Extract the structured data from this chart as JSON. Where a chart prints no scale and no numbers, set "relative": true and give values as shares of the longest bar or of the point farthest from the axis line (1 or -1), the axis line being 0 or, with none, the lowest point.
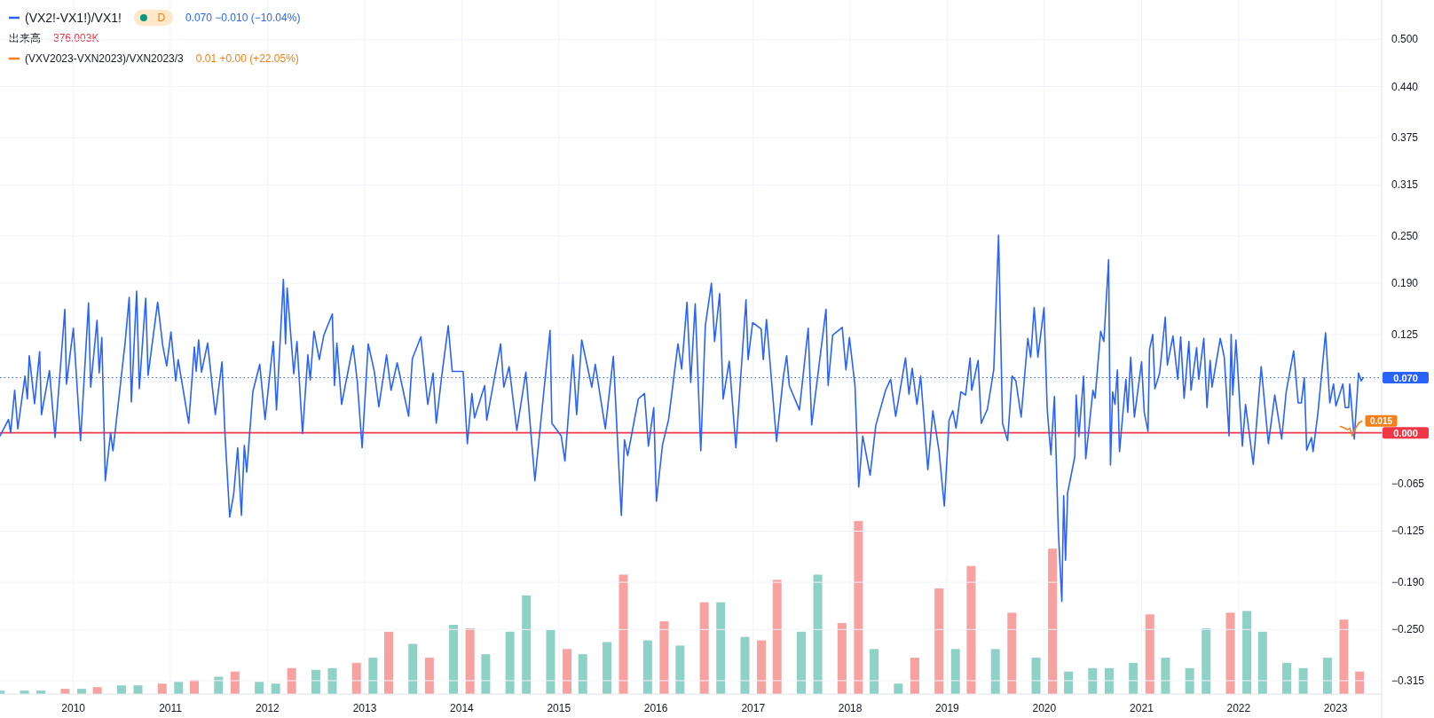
{
  "chart_data": [
    {
      "type": "line",
      "legend": "top left",
      "grid": true,
      "xlim": [
        "2009-03-31",
        "2023-06-23"
      ],
      "ylim": [
        -0.332,
        0.55
      ],
      "xticks": [
        "2010",
        "2011",
        "2012",
        "2013",
        "2014",
        "2015",
        "2016",
        "2017",
        "2018",
        "2019",
        "2020",
        "2021",
        "2022",
        "2023"
      ],
      "yticks": [
        {
          "value": 0.5,
          "label": "0.500"
        },
        {
          "value": 0.44,
          "label": "0.440"
        },
        {
          "value": 0.375,
          "label": "0.375"
        },
        {
          "value": 0.315,
          "label": "0.315"
        },
        {
          "value": 0.25,
          "label": "0.250"
        },
        {
          "value": 0.19,
          "label": "0.190"
        },
        {
          "value": 0.125,
          "label": "0.125"
        },
        {
          "value": 0.065,
          "label": null
        },
        {
          "value": 0,
          "label": null
        },
        {
          "value": -0.065,
          "label": "−0.065"
        },
        {
          "value": -0.125,
          "label": "−0.125"
        },
        {
          "value": -0.19,
          "label": "−0.190"
        },
        {
          "value": -0.25,
          "label": "−0.250"
        },
        {
          "value": -0.315,
          "label": "−0.315"
        }
      ],
      "annotations": [
        "D",
        "0.070 −0.010 (−10.04%)",
        "0.01 +0.00 (+22.05%)"
      ],
      "ref_lines": [
        {
          "axis": "y",
          "value": 0.07,
          "label": "0.070",
          "color": "#2962ff",
          "line_style": "dotted"
        },
        {
          "axis": "y",
          "value": 0,
          "label": "0.000",
          "color": "#f23645",
          "line_style": "solid"
        }
      ],
      "series": [
        {
          "name": "(VX2!-VX1!)/VX1!",
          "color": "#2962ff",
          "line_style": "solid",
          "x": [
            "2009-03-31",
            "2009-05-02",
            "2009-05-10",
            "2009-05-25",
            "2009-06-06",
            "2009-07-03",
            "2009-07-12",
            "2009-07-19",
            "2009-08-08",
            "2009-08-27",
            "2009-09-03",
            "2009-10-03",
            "2009-10-24",
            "2009-11-30",
            "2009-12-06",
            "2010-01-01",
            "2010-01-28",
            "2010-02-27",
            "2010-03-07",
            "2010-03-31",
            "2010-04-08",
            "2010-04-18",
            "2010-05-01",
            "2010-05-21",
            "2010-05-30",
            "2010-07-15",
            "2010-07-30",
            "2010-08-07",
            "2010-08-27",
            "2010-09-06",
            "2010-09-30",
            "2010-10-09",
            "2010-11-14",
            "2010-12-03",
            "2010-12-18",
            "2011-01-03",
            "2011-01-21",
            "2011-01-30",
            "2011-03-11",
            "2011-04-01",
            "2011-04-08",
            "2011-04-17",
            "2011-04-28",
            "2011-05-21",
            "2011-06-19",
            "2011-07-14",
            "2011-07-25",
            "2011-08-12",
            "2011-08-27",
            "2011-09-11",
            "2011-09-25",
            "2011-10-06",
            "2011-10-15",
            "2011-11-07",
            "2011-12-03",
            "2011-12-23",
            "2012-01-23",
            "2012-02-04",
            "2012-03-01",
            "2012-03-09",
            "2012-03-15",
            "2012-04-09",
            "2012-04-21",
            "2012-05-12",
            "2012-06-01",
            "2012-06-10",
            "2012-06-24",
            "2012-07-14",
            "2012-07-31",
            "2012-09-01",
            "2012-09-09",
            "2012-09-18",
            "2012-10-06",
            "2012-11-18",
            "2012-12-04",
            "2012-12-22",
            "2013-01-14",
            "2013-02-06",
            "2013-02-23",
            "2013-03-24",
            "2013-04-10",
            "2013-05-03",
            "2013-06-15",
            "2013-06-29",
            "2013-07-31",
            "2013-08-26",
            "2013-09-15",
            "2013-09-27",
            "2013-10-16",
            "2013-11-11",
            "2013-11-26",
            "2014-01-06",
            "2014-01-22",
            "2014-02-08",
            "2014-02-18",
            "2014-03-28",
            "2014-04-05",
            "2014-05-27",
            "2014-06-08",
            "2014-06-28",
            "2014-07-27",
            "2014-08-30",
            "2014-10-03",
            "2014-11-04",
            "2014-11-29",
            "2014-12-06",
            "2015-01-10",
            "2015-01-24",
            "2015-02-23",
            "2015-03-09",
            "2015-03-28",
            "2015-05-05",
            "2015-05-18",
            "2015-06-25",
            "2015-07-25",
            "2015-08-24",
            "2015-09-05",
            "2015-09-17",
            "2015-10-27",
            "2015-11-19",
            "2015-12-04",
            "2015-12-24",
            "2016-01-03",
            "2016-01-26",
            "2016-02-18",
            "2016-03-24",
            "2016-04-07",
            "2016-04-27",
            "2016-05-11",
            "2016-05-28",
            "2016-06-18",
            "2016-07-05",
            "2016-07-28",
            "2016-08-09",
            "2016-08-28",
            "2016-09-10",
            "2016-10-03",
            "2016-10-28",
            "2016-12-05",
            "2016-12-13",
            "2016-12-30",
            "2017-01-31",
            "2017-02-08",
            "2017-02-20",
            "2017-03-30",
            "2017-04-24",
            "2017-05-07",
            "2017-05-17",
            "2017-06-24",
            "2017-07-27",
            "2017-08-09",
            "2017-10-02",
            "2017-10-10",
            "2017-10-27",
            "2017-12-02",
            "2017-12-16",
            "2017-12-29",
            "2018-01-19",
            "2018-02-02",
            "2018-02-17",
            "2018-03-17",
            "2018-04-07",
            "2018-05-14",
            "2018-06-02",
            "2018-06-21",
            "2018-07-28",
            "2018-08-10",
            "2018-08-22",
            "2018-09-09",
            "2018-09-23",
            "2018-10-20",
            "2018-11-08",
            "2018-12-01",
            "2018-12-21",
            "2019-01-08",
            "2019-01-22",
            "2019-02-03",
            "2019-02-21",
            "2019-03-11",
            "2019-03-28",
            "2019-04-03",
            "2019-04-27",
            "2019-05-09",
            "2019-06-01",
            "2019-06-25",
            "2019-07-13",
            "2019-07-28",
            "2019-08-16",
            "2019-09-02",
            "2019-09-16",
            "2019-10-06",
            "2019-10-31",
            "2019-11-11",
            "2019-11-24",
            "2019-12-08",
            "2019-12-31",
            "2020-01-12",
            "2020-01-26",
            "2020-02-08",
            "2020-02-23",
            "2020-03-07",
            "2020-03-14",
            "2020-03-21",
            "2020-03-29",
            "2020-04-25",
            "2020-04-30",
            "2020-05-10",
            "2020-05-28",
            "2020-06-05",
            "2020-07-02",
            "2020-07-10",
            "2020-07-31",
            "2020-08-12",
            "2020-08-30",
            "2020-09-06",
            "2020-09-14",
            "2020-09-23",
            "2020-10-02",
            "2020-10-10",
            "2020-11-03",
            "2020-11-10",
            "2020-11-21",
            "2020-12-05",
            "2021-01-01",
            "2021-01-11",
            "2021-01-25",
            "2021-01-31",
            "2021-02-12",
            "2021-02-20",
            "2021-03-10",
            "2021-03-31",
            "2021-04-08",
            "2021-04-29",
            "2021-05-17",
            "2021-05-28",
            "2021-06-10",
            "2021-06-28",
            "2021-07-06",
            "2021-07-27",
            "2021-08-04",
            "2021-08-23",
            "2021-09-04",
            "2021-09-16",
            "2021-09-23",
            "2021-10-24",
            "2021-11-08",
            "2021-11-26",
            "2021-12-04",
            "2021-12-10",
            "2021-12-22",
            "2022-01-15",
            "2022-01-27",
            "2022-02-25",
            "2022-03-27",
            "2022-04-23",
            "2022-05-17",
            "2022-06-12",
            "2022-06-29",
            "2022-07-27",
            "2022-08-13",
            "2022-08-25",
            "2022-09-05",
            "2022-09-14",
            "2022-10-02",
            "2022-10-08",
            "2022-10-26",
            "2022-11-24",
            "2022-12-10",
            "2022-12-24",
            "2023-01-02",
            "2023-01-28",
            "2023-02-06",
            "2023-02-19",
            "2023-02-23",
            "2023-03-12",
            "2023-03-28",
            "2023-04-07",
            "2023-04-15"
          ],
          "values": [
            -0.004,
            0.017,
            0,
            0.054,
            0.005,
            0.072,
            0.043,
            0.098,
            0.037,
            0.103,
            0.023,
            0.079,
            -0.006,
            0.157,
            0.062,
            0.133,
            -0.01,
            0.165,
            0.058,
            0.143,
            0.076,
            0.121,
            -0.061,
            0,
            -0.023,
            0.116,
            0.172,
            0.039,
            0.18,
            0.056,
            0.171,
            0.073,
            0.166,
            0.111,
            0.085,
            0.128,
            0.066,
            0.093,
            0.012,
            0.109,
            0.078,
            0.118,
            0.077,
            0.114,
            0.023,
            0.09,
            0,
            -0.107,
            -0.078,
            -0.019,
            -0.105,
            -0.016,
            -0.05,
            0.052,
            0.087,
            0.017,
            0.116,
            0.029,
            0.195,
            0.113,
            0.184,
            0.075,
            0.116,
            -0.001,
            0.099,
            0.067,
            0.129,
            0.093,
            0.124,
            0.151,
            0.06,
            0.114,
            0.036,
            0.111,
            0.065,
            -0.019,
            0.113,
            0.078,
            0.033,
            0.099,
            0.054,
            0.089,
            0.021,
            0.094,
            0.122,
            0.036,
            0.076,
            0.012,
            0.068,
            0.136,
            0.078,
            0.078,
            -0.014,
            0.05,
            0.019,
            0.06,
            0.016,
            0.113,
            0.058,
            0.084,
            0.003,
            0.077,
            -0.061,
            0.047,
            0.13,
            0.012,
            -0.004,
            -0.036,
            0.099,
            0.023,
            0.118,
            0.058,
            0.087,
            0.005,
            0.097,
            -0.105,
            -0.009,
            -0.029,
            0.043,
            0.05,
            -0.017,
            0.032,
            -0.087,
            -0.015,
            0.017,
            0.113,
            0.081,
            0.166,
            0.064,
            0.164,
            -0.023,
            0.136,
            0.19,
            0.116,
            0.177,
            0.043,
            0.091,
            -0.019,
            0.169,
            0.093,
            0.14,
            0.132,
            0.093,
            0.144,
            -0.011,
            0.07,
            0.098,
            0.06,
            0.029,
            0.133,
            0.01,
            0.157,
            0.06,
            0.124,
            0.134,
            0.08,
            0.121,
            0.06,
            -0.069,
            -0.004,
            -0.054,
            0.009,
            0.054,
            0.068,
            0.021,
            0.095,
            0.049,
            0.082,
            0.036,
            0.072,
            -0.047,
            0.028,
            -0.023,
            -0.093,
            0.016,
            0.028,
            0.006,
            0.052,
            0.048,
            0.095,
            0.054,
            0.092,
            0.012,
            0.03,
            0.08,
            0.251,
            0.012,
            -0.01,
            0.072,
            0.066,
            0.02,
            0.12,
            0.096,
            0.159,
            0.096,
            0.159,
            0.03,
            -0.028,
            0.046,
            -0.126,
            -0.214,
            -0.08,
            -0.162,
            -0.076,
            -0.03,
            0.048,
            -0.005,
            0.072,
            -0.033,
            0.054,
            0.044,
            0.129,
            0.116,
            0.22,
            -0.041,
            0.052,
            0.036,
            0.08,
            -0.024,
            0.068,
            0.026,
            0.096,
            0.02,
            0.09,
            0.026,
            0.002,
            0.106,
            0.125,
            0.056,
            0.076,
            0.147,
            0.086,
            0.123,
            0.068,
            0.122,
            0.044,
            0.116,
            0.054,
            0.108,
            0.068,
            0.12,
            0.032,
            0.092,
            0.058,
            0.12,
            0.096,
            -0.004,
            0.125,
            0.048,
            0.118,
            -0.017,
            0.036,
            -0.04,
            0.084,
            -0.014,
            0.048,
            -0.008,
            0.052,
            0.104,
            0.038,
            0.038,
            0.07,
            -0.022,
            -0.006,
            -0.024,
            0.024,
            0.127,
            0.038,
            0.062,
            0.034,
            0.062,
            0.032,
            0.032,
            0.062,
            -0.008,
            0.076,
            0.066,
            0.07
          ]
        },
        {
          "name": "(VXV2023-VXN2023)/VXN2023/3",
          "color": "#f57f17",
          "line_style": "solid",
          "x": [
            "2023-01-19",
            "2023-02-03",
            "2023-02-15",
            "2023-02-23",
            "2023-03-05",
            "2023-03-14",
            "2023-03-28",
            "2023-04-09"
          ],
          "values": [
            0.008,
            0.006,
            0.004,
            0.006,
            -0.004,
            0.004,
            0.012,
            0.015
          ],
          "value_labels": [
            null,
            null,
            null,
            null,
            null,
            null,
            null,
            "0.015"
          ]
        }
      ]
    },
    {
      "type": "bar",
      "relative": true,
      "title": "出来高",
      "subtitle": "376.003K",
      "tick_labels": false,
      "xlim": [
        "2009-03-31",
        "2023-06-23"
      ],
      "x": [
        "2009-04",
        "2009-07",
        "2009-09",
        "2009-12",
        "2010-02",
        "2010-04",
        "2010-07",
        "2010-09",
        "2010-12",
        "2011-02",
        "2011-04",
        "2011-07",
        "2011-09",
        "2011-12",
        "2012-02",
        "2012-04",
        "2012-07",
        "2012-09",
        "2012-12",
        "2013-02",
        "2013-04",
        "2013-07",
        "2013-09",
        "2013-12",
        "2014-02",
        "2014-04",
        "2014-07",
        "2014-09",
        "2014-12",
        "2015-02",
        "2015-04",
        "2015-07",
        "2015-09",
        "2015-12",
        "2016-02",
        "2016-04",
        "2016-07",
        "2016-09",
        "2016-12",
        "2017-02",
        "2017-04",
        "2017-07",
        "2017-09",
        "2017-12",
        "2018-02",
        "2018-04",
        "2018-07",
        "2018-09",
        "2018-12",
        "2019-02",
        "2019-04",
        "2019-07",
        "2019-09",
        "2019-12",
        "2020-02",
        "2020-04",
        "2020-07",
        "2020-09",
        "2020-12",
        "2021-02",
        "2021-04",
        "2021-07",
        "2021-09",
        "2021-12",
        "2022-02",
        "2022-04",
        "2022-07",
        "2022-09",
        "2022-12",
        "2023-02",
        "2023-04"
      ],
      "values": [
        0.02,
        0.02,
        0.02,
        0.03,
        0.03,
        0.04,
        0.05,
        0.05,
        0.06,
        0.07,
        0.08,
        0.1,
        0.13,
        0.07,
        0.06,
        0.15,
        0.14,
        0.15,
        0.18,
        0.21,
        0.36,
        0.29,
        0.21,
        0.4,
        0.38,
        0.23,
        0.36,
        0.57,
        0.37,
        0.26,
        0.23,
        0.3,
        0.69,
        0.31,
        0.42,
        0.28,
        0.53,
        0.53,
        0.33,
        0.31,
        0.66,
        0.36,
        0.69,
        0.41,
        1,
        0.26,
        0.06,
        0.21,
        0.61,
        0.26,
        0.74,
        0.26,
        0.47,
        0.21,
        0.84,
        0.13,
        0.15,
        0.15,
        0.18,
        0.46,
        0.21,
        0.15,
        0.38,
        0.47,
        0.48,
        0.36,
        0.18,
        0.15,
        0.21,
        0.43,
        0.13
      ],
      "colors": [
        "#8ed1c6",
        "#8ed1c6",
        "#8ed1c6",
        "#f7a1a1",
        "#8ed1c6",
        "#f7a1a1",
        "#8ed1c6",
        "#8ed1c6",
        "#f7a1a1",
        "#8ed1c6",
        "#f7a1a1",
        "#8ed1c6",
        "#f7a1a1",
        "#8ed1c6",
        "#8ed1c6",
        "#f7a1a1",
        "#8ed1c6",
        "#8ed1c6",
        "#f7a1a1",
        "#8ed1c6",
        "#f7a1a1",
        "#8ed1c6",
        "#f7a1a1",
        "#8ed1c6",
        "#f7a1a1",
        "#8ed1c6",
        "#8ed1c6",
        "#8ed1c6",
        "#8ed1c6",
        "#f7a1a1",
        "#8ed1c6",
        "#8ed1c6",
        "#f7a1a1",
        "#8ed1c6",
        "#f7a1a1",
        "#8ed1c6",
        "#f7a1a1",
        "#8ed1c6",
        "#8ed1c6",
        "#f7a1a1",
        "#f7a1a1",
        "#8ed1c6",
        "#8ed1c6",
        "#f7a1a1",
        "#f7a1a1",
        "#8ed1c6",
        "#8ed1c6",
        "#f7a1a1",
        "#f7a1a1",
        "#8ed1c6",
        "#f7a1a1",
        "#8ed1c6",
        "#f7a1a1",
        "#8ed1c6",
        "#f7a1a1",
        "#8ed1c6",
        "#8ed1c6",
        "#8ed1c6",
        "#8ed1c6",
        "#f7a1a1",
        "#8ed1c6",
        "#8ed1c6",
        "#8ed1c6",
        "#f7a1a1",
        "#8ed1c6",
        "#8ed1c6",
        "#8ed1c6",
        "#8ed1c6",
        "#8ed1c6",
        "#f7a1a1",
        "#f7a1a1"
      ]
    }
  ]
}
